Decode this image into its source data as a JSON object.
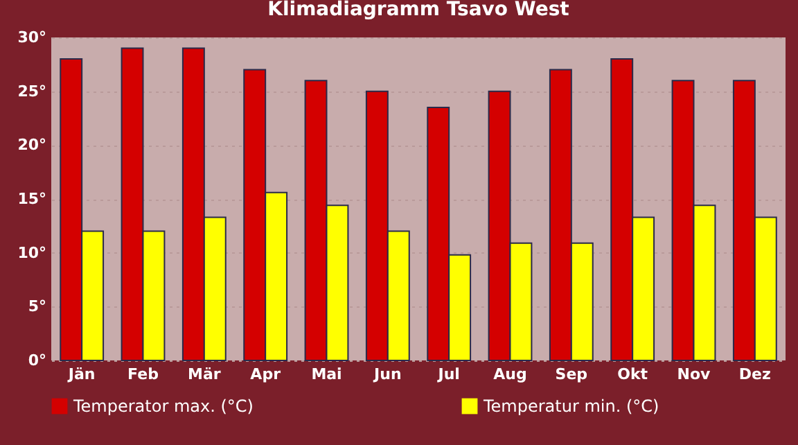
{
  "chart_data": {
    "type": "bar",
    "title": "Klimadiagramm Tsavo West",
    "categories": [
      "Jän",
      "Feb",
      "Mär",
      "Apr",
      "Mai",
      "Jun",
      "Jul",
      "Aug",
      "Sep",
      "Okt",
      "Nov",
      "Dez"
    ],
    "series": [
      {
        "name": "Temperator max. (°C)",
        "color": "#d40000",
        "values": [
          28,
          29,
          29,
          27,
          26,
          25,
          23.5,
          25,
          27,
          28,
          26,
          26
        ]
      },
      {
        "name": "Temperatur min. (°C)",
        "color": "#ffff00",
        "values": [
          12,
          12,
          13.3,
          15.6,
          14.4,
          12,
          9.8,
          10.9,
          10.9,
          13.3,
          14.4,
          13.3
        ]
      }
    ],
    "ylim": [
      0,
      30
    ],
    "yticks": [
      {
        "value": 0,
        "label": "0°"
      },
      {
        "value": 5,
        "label": "5°"
      },
      {
        "value": 10,
        "label": "10°"
      },
      {
        "value": 15,
        "label": "15°"
      },
      {
        "value": 20,
        "label": "20°"
      },
      {
        "value": 25,
        "label": "25°"
      },
      {
        "value": 30,
        "label": "30°"
      }
    ],
    "grid": "y",
    "legend": "bottom"
  }
}
